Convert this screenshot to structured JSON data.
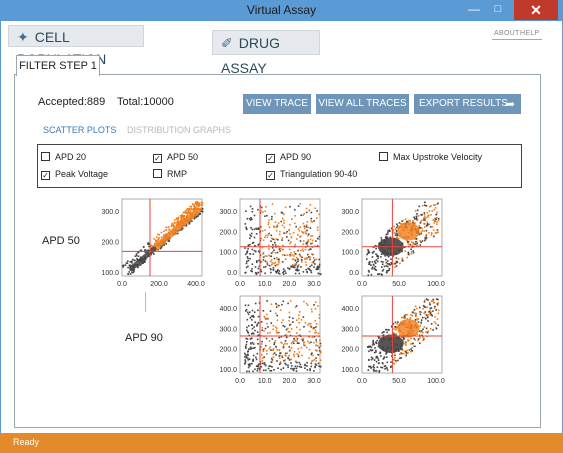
{
  "window": {
    "title": "Virtual Assay",
    "min": "—",
    "max": "□",
    "close": "✕"
  },
  "nav": {
    "cell_population": "CELL POPULATION",
    "drug_assay": "DRUG ASSAY",
    "about": "ABOUT",
    "help": "HELP"
  },
  "tab": {
    "label": "FILTER STEP 1"
  },
  "stats": {
    "accepted": "Accepted:889",
    "total": "Total:10000"
  },
  "buttons": {
    "view_trace": "VIEW TRACE",
    "view_all_traces": "VIEW ALL TRACES",
    "export_results": "EXPORT RESULTS"
  },
  "subtabs": {
    "scatter": "SCATTER PLOTS",
    "distribution": "DISTRIBUTION GRAPHS"
  },
  "checkboxes": [
    {
      "label": "APD 20",
      "checked": false
    },
    {
      "label": "APD 50",
      "checked": true
    },
    {
      "label": "APD 90",
      "checked": true
    },
    {
      "label": "Max Upstroke Velocity",
      "checked": false
    },
    {
      "label": "Peak Voltage",
      "checked": true
    },
    {
      "label": "RMP",
      "checked": false
    },
    {
      "label": "Triangulation 90-40",
      "checked": true
    }
  ],
  "row_labels": {
    "apd50": "APD 50",
    "apd90": "APD 90"
  },
  "plots": {
    "p11": {
      "y_ticks": [
        "300.0",
        "200.0",
        "100.0"
      ],
      "x_ticks": [
        "0.0",
        "200.0",
        "400.0"
      ]
    },
    "p12": {
      "y_ticks": [
        "300.0",
        "200.0",
        "100.0",
        "0.0"
      ],
      "x_ticks": [
        "0.0",
        "10.0",
        "20.0",
        "30.0"
      ]
    },
    "p13": {
      "y_ticks": [
        "300.0",
        "200.0",
        "100.0",
        "0.0"
      ],
      "x_ticks": [
        "0.0",
        "50.0",
        "100.0"
      ]
    },
    "p22": {
      "y_ticks": [
        "400.0",
        "300.0",
        "200.0",
        "100.0"
      ],
      "x_ticks": [
        "0.0",
        "10.0",
        "20.0",
        "30.0"
      ]
    },
    "p23": {
      "y_ticks": [
        "400.0",
        "300.0",
        "200.0",
        "100.0"
      ],
      "x_ticks": [
        "0.0",
        "50.0",
        "100.0"
      ]
    }
  },
  "status": {
    "text": "Ready"
  },
  "colors": {
    "accent": "#e38b2a",
    "title_bar": "#5b9bd5",
    "button": "#6f96b8",
    "accepted_points": "#f07d1c",
    "rejected_points": "#444444",
    "threshold_line": "#e8423a"
  }
}
